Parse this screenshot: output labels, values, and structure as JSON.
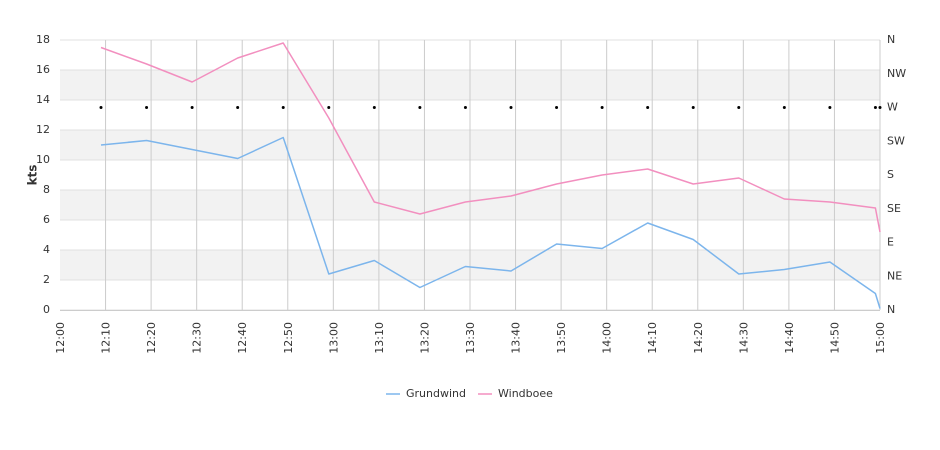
{
  "chart_data": {
    "type": "line",
    "ylabel": "kts",
    "ylim": [
      0,
      18
    ],
    "y_ticks": [
      "0",
      "2",
      "4",
      "6",
      "8",
      "10",
      "12",
      "14",
      "16",
      "18"
    ],
    "x_ticks": [
      "12:00",
      "12:10",
      "12:20",
      "12:30",
      "12:40",
      "12:50",
      "13:00",
      "13:10",
      "13:20",
      "13:30",
      "13:40",
      "13:50",
      "14:00",
      "14:10",
      "14:20",
      "14:30",
      "14:40",
      "14:50",
      "15:00"
    ],
    "x_range": [
      "12:00",
      "15:00"
    ],
    "right_axis": {
      "labels": [
        "N",
        "NE",
        "E",
        "SE",
        "S",
        "SW",
        "W",
        "NW",
        "N"
      ]
    },
    "grid": true,
    "legend_position": "bottom",
    "series": [
      {
        "name": "Grundwind",
        "color": "#7cb5ec",
        "x": [
          "12:09",
          "12:19",
          "12:29",
          "12:39",
          "12:49",
          "12:59",
          "13:09",
          "13:19",
          "13:29",
          "13:39",
          "13:49",
          "13:59",
          "14:09",
          "14:19",
          "14:29",
          "14:39",
          "14:49",
          "14:59",
          "15:00"
        ],
        "values": [
          11.0,
          11.3,
          10.7,
          10.1,
          11.5,
          2.4,
          3.3,
          1.5,
          2.9,
          2.6,
          4.4,
          4.1,
          5.8,
          4.7,
          2.4,
          2.7,
          3.2,
          1.1,
          0.1
        ]
      },
      {
        "name": "Windboee",
        "color": "#f28fbf",
        "x": [
          "12:09",
          "12:19",
          "12:29",
          "12:39",
          "12:49",
          "12:59",
          "13:09",
          "13:19",
          "13:29",
          "13:39",
          "13:49",
          "13:59",
          "14:09",
          "14:19",
          "14:29",
          "14:39",
          "14:49",
          "14:59",
          "15:00"
        ],
        "values": [
          17.5,
          16.4,
          15.2,
          16.8,
          17.8,
          12.8,
          7.2,
          6.4,
          7.2,
          7.6,
          8.4,
          9.0,
          9.4,
          8.4,
          8.8,
          7.4,
          7.2,
          6.8,
          5.2
        ]
      }
    ],
    "direction_markers": {
      "x": [
        "12:09",
        "12:19",
        "12:29",
        "12:39",
        "12:49",
        "12:59",
        "13:09",
        "13:19",
        "13:29",
        "13:39",
        "13:49",
        "13:59",
        "14:09",
        "14:19",
        "14:29",
        "14:39",
        "14:49",
        "14:59",
        "15:00"
      ],
      "direction": [
        "W",
        "W",
        "W",
        "W",
        "W",
        "W",
        "W",
        "W",
        "W",
        "W",
        "W",
        "W",
        "W",
        "W",
        "W",
        "W",
        "W",
        "W",
        "W"
      ]
    }
  }
}
